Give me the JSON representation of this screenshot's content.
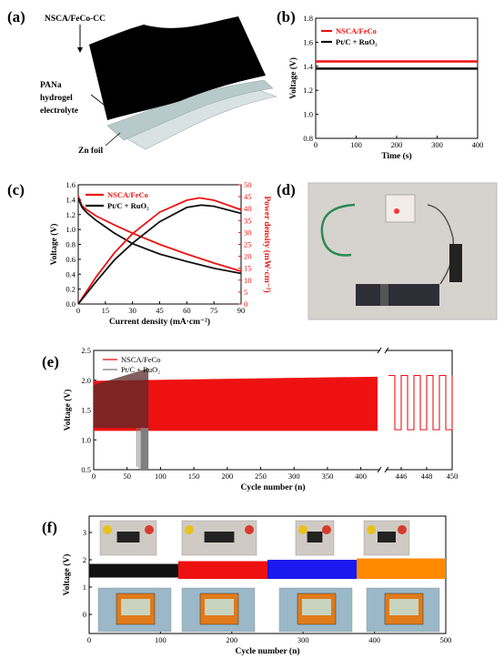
{
  "panels": {
    "a": "(a)",
    "b": "(b)",
    "c": "(c)",
    "d": "(d)",
    "e": "(e)",
    "f": "(f)"
  },
  "panel_a": {
    "top_label": "NSCA/FeCo-CC",
    "mid_label_lines": [
      "PANa",
      "hydrogel",
      "electrolyte"
    ],
    "bottom_label": "Zn foil"
  },
  "colors": {
    "red": "#ee1111",
    "black": "#111111",
    "blue": "#1a1aee",
    "orange": "#ff8a00",
    "gray": "#7f7f7f",
    "photo_bg": "#d8d8d8"
  },
  "photo_d": {
    "description_icon": "led-board-photo-icon"
  },
  "photos_f": [
    "device-photo-icon",
    "device-photo-icon",
    "device-photo-icon",
    "device-photo-icon"
  ],
  "chart_data": [
    {
      "panel": "b",
      "type": "line",
      "xlabel": "Time (s)",
      "ylabel": "Voltage (V)",
      "xlim": [
        0,
        400
      ],
      "ylim": [
        0.8,
        1.8
      ],
      "xticks": [
        "0",
        "100",
        "200",
        "300",
        "400"
      ],
      "yticks": [
        "0.8",
        "1.0",
        "1.2",
        "1.4",
        "1.6",
        "1.8"
      ],
      "legend_position": "top-left",
      "series": [
        {
          "name": "NSCA/FeCo",
          "color": "#ee1111",
          "x": [
            0,
            400
          ],
          "y": [
            1.44,
            1.44
          ]
        },
        {
          "name": "Pt/C + RuO₂",
          "color": "#111111",
          "x": [
            0,
            400
          ],
          "y": [
            1.38,
            1.38
          ]
        }
      ]
    },
    {
      "panel": "c",
      "type": "line",
      "xlabel": "Current density (mA·cm⁻²)",
      "ylabel": "Voltage (V)",
      "ylabel_right": "Power density (mW·cm⁻²)",
      "xlim": [
        0,
        90
      ],
      "ylim": [
        0.0,
        1.6
      ],
      "ylim_right": [
        0,
        50
      ],
      "xticks": [
        "0",
        "15",
        "30",
        "45",
        "60",
        "75",
        "90"
      ],
      "yticks": [
        "0.0",
        "0.2",
        "0.4",
        "0.6",
        "0.8",
        "1.0",
        "1.2",
        "1.4",
        "1.6"
      ],
      "yticks_right": [
        "0",
        "5",
        "10",
        "15",
        "20",
        "25",
        "30",
        "35",
        "40",
        "45",
        "50"
      ],
      "legend_position": "top-left",
      "series": [
        {
          "name": "NSCA/FeCo",
          "axis": "left",
          "color": "#ee1111",
          "x": [
            0,
            2,
            5,
            10,
            20,
            30,
            45,
            60,
            75,
            90
          ],
          "y": [
            1.45,
            1.32,
            1.26,
            1.18,
            1.06,
            0.95,
            0.8,
            0.67,
            0.55,
            0.44
          ]
        },
        {
          "name": "Pt/C + RuO₂",
          "axis": "left",
          "color": "#111111",
          "x": [
            0,
            2,
            5,
            10,
            20,
            30,
            45,
            60,
            75,
            90
          ],
          "y": [
            1.42,
            1.3,
            1.22,
            1.12,
            0.95,
            0.81,
            0.67,
            0.57,
            0.48,
            0.41
          ]
        },
        {
          "name": "NSCA/FeCo power",
          "axis": "right",
          "color": "#ee1111",
          "x": [
            0,
            10,
            20,
            30,
            45,
            60,
            67,
            75,
            90
          ],
          "y": [
            0,
            11.5,
            21.5,
            29.5,
            38.5,
            43.5,
            44.5,
            43.5,
            39.5
          ]
        },
        {
          "name": "Pt/C + RuO₂ power",
          "axis": "right",
          "color": "#111111",
          "x": [
            0,
            10,
            20,
            30,
            45,
            60,
            68,
            75,
            90
          ],
          "y": [
            0,
            9.5,
            18.5,
            25.5,
            34.5,
            40.5,
            41.5,
            41.0,
            38.0
          ]
        }
      ]
    },
    {
      "panel": "e",
      "type": "area",
      "xlabel": "Cycle number (n)",
      "ylabel": "Voltage (V)",
      "ylim": [
        0.5,
        2.5
      ],
      "xticks_main": [
        "0",
        "50",
        "100",
        "150",
        "200",
        "250",
        "300",
        "350",
        "400"
      ],
      "xticks_break": [
        "446",
        "448",
        "450"
      ],
      "yticks": [
        "0.5",
        "1.0",
        "1.5",
        "2.0",
        "2.5"
      ],
      "legend_position": "top-left",
      "series": [
        {
          "name": "NSCA/FeCo",
          "color": "#ee1111",
          "x_range": [
            0,
            425
          ],
          "charge_v": [
            1.99,
            2.06
          ],
          "discharge_v": 1.15
        },
        {
          "name": "Pt/C + RuO₂",
          "color": "#7f7f7f",
          "x_range": [
            0,
            82
          ],
          "charge_v": [
            1.92,
            2.2
          ],
          "discharge_v": 1.2,
          "failure_cycle": 70
        }
      ],
      "break_cycles": {
        "start": 445,
        "end": 450,
        "charge_v": 2.08,
        "discharge_v": 1.17
      }
    },
    {
      "panel": "f",
      "type": "area",
      "xlabel": "Cycle number (n)",
      "ylabel": "Voltage (V)",
      "xlim": [
        0,
        500
      ],
      "ylim": [
        -0.7,
        3.6
      ],
      "xticks": [
        "0",
        "100",
        "200",
        "300",
        "400",
        "500"
      ],
      "yticks": [
        "0",
        "1",
        "2",
        "3"
      ],
      "segments": [
        {
          "color": "#111111",
          "x_range": [
            0,
            125
          ],
          "v_range": [
            1.35,
            1.85
          ]
        },
        {
          "color": "#ee1111",
          "x_range": [
            125,
            250
          ],
          "v_range": [
            1.3,
            1.95
          ]
        },
        {
          "color": "#1a1aee",
          "x_range": [
            250,
            375
          ],
          "v_range": [
            1.3,
            2.0
          ]
        },
        {
          "color": "#ff8a00",
          "x_range": [
            375,
            500
          ],
          "v_range": [
            1.3,
            2.05
          ]
        }
      ]
    }
  ]
}
